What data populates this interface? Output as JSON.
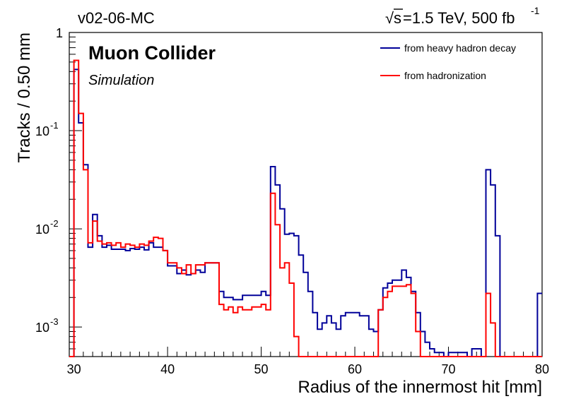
{
  "header": {
    "left_label": "v02-06-MC",
    "energy_sqrt": "s",
    "energy_prefix": "=1.5 TeV, 500 fb",
    "energy_superscript": "-1"
  },
  "chart_data": {
    "type": "line",
    "xlabel": "Radius of the innermost hit [mm]",
    "ylabel": "Tracks / 0.50 mm",
    "xlim": [
      29.5,
      80
    ],
    "ylim": [
      0.0005,
      1
    ],
    "y_scale": "log",
    "grid": false,
    "legend_position": "top-right",
    "annotations": [
      {
        "text": "Muon Collider",
        "style": "bold"
      },
      {
        "text": "Simulation",
        "style": "italic"
      }
    ],
    "x_ticks": [
      {
        "value": 30,
        "label": "30"
      },
      {
        "value": 40,
        "label": "40"
      },
      {
        "value": 50,
        "label": "50"
      },
      {
        "value": 60,
        "label": "60"
      },
      {
        "value": 70,
        "label": "70"
      },
      {
        "value": 80,
        "label": "80"
      }
    ],
    "y_ticks": [
      {
        "value": 1,
        "base": "1",
        "exp": ""
      },
      {
        "value": 0.1,
        "base": "10",
        "exp": "-1"
      },
      {
        "value": 0.01,
        "base": "10",
        "exp": "-2"
      },
      {
        "value": 0.001,
        "base": "10",
        "exp": "-3"
      }
    ],
    "bin_edges": [
      29.5,
      80
    ],
    "series": [
      {
        "name": "from heavy hadron decay",
        "color": "#000099",
        "steps": [
          [
            29.5,
            0.0005
          ],
          [
            30.0,
            0.0005
          ],
          [
            30.0,
            0.42
          ],
          [
            30.5,
            0.12
          ],
          [
            31.0,
            0.045
          ],
          [
            31.5,
            0.0065
          ],
          [
            32.0,
            0.014
          ],
          [
            32.5,
            0.0085
          ],
          [
            33.0,
            0.0065
          ],
          [
            33.5,
            0.0068
          ],
          [
            34.0,
            0.0062
          ],
          [
            34.5,
            0.0062
          ],
          [
            35.0,
            0.0062
          ],
          [
            35.5,
            0.006
          ],
          [
            36.0,
            0.0063
          ],
          [
            36.5,
            0.0062
          ],
          [
            37.0,
            0.0065
          ],
          [
            37.5,
            0.0061
          ],
          [
            38.0,
            0.0072
          ],
          [
            38.5,
            0.0065
          ],
          [
            39.0,
            0.0065
          ],
          [
            39.5,
            0.006
          ],
          [
            40.0,
            0.0042
          ],
          [
            40.5,
            0.0042
          ],
          [
            41.0,
            0.0035
          ],
          [
            41.5,
            0.0038
          ],
          [
            42.0,
            0.0034
          ],
          [
            42.5,
            0.0035
          ],
          [
            43.0,
            0.0038
          ],
          [
            43.5,
            0.0036
          ],
          [
            44.0,
            0.0045
          ],
          [
            44.5,
            0.0045
          ],
          [
            45.0,
            0.0045
          ],
          [
            45.5,
            0.0023
          ],
          [
            46.0,
            0.002
          ],
          [
            46.5,
            0.002
          ],
          [
            47.0,
            0.0019
          ],
          [
            47.5,
            0.0019
          ],
          [
            48.0,
            0.0021
          ],
          [
            48.5,
            0.0021
          ],
          [
            49.0,
            0.0021
          ],
          [
            49.5,
            0.0021
          ],
          [
            50.0,
            0.0023
          ],
          [
            50.5,
            0.0021
          ],
          [
            51.0,
            0.043
          ],
          [
            51.5,
            0.028
          ],
          [
            52.0,
            0.016
          ],
          [
            52.5,
            0.0088
          ],
          [
            53.0,
            0.009
          ],
          [
            53.5,
            0.0085
          ],
          [
            54.0,
            0.0054
          ],
          [
            54.5,
            0.0036
          ],
          [
            55.0,
            0.0023
          ],
          [
            55.5,
            0.0014
          ],
          [
            56.0,
            0.00095
          ],
          [
            56.5,
            0.0011
          ],
          [
            57.0,
            0.0013
          ],
          [
            57.5,
            0.0011
          ],
          [
            58.0,
            0.00095
          ],
          [
            58.5,
            0.0013
          ],
          [
            59.0,
            0.0014
          ],
          [
            59.5,
            0.0014
          ],
          [
            60.0,
            0.0014
          ],
          [
            60.5,
            0.0013
          ],
          [
            61.0,
            0.0013
          ],
          [
            61.5,
            0.00095
          ],
          [
            62.0,
            0.0009
          ],
          [
            62.5,
            0.0015
          ],
          [
            63.0,
            0.0025
          ],
          [
            63.5,
            0.0028
          ],
          [
            64.0,
            0.003
          ],
          [
            64.5,
            0.003
          ],
          [
            65.0,
            0.0038
          ],
          [
            65.5,
            0.0032
          ],
          [
            66.0,
            0.0023
          ],
          [
            66.5,
            0.0014
          ],
          [
            67.0,
            0.0009
          ],
          [
            67.5,
            0.0007
          ],
          [
            68.0,
            0.0006
          ],
          [
            68.5,
            0.00055
          ],
          [
            69.0,
            0.00055
          ],
          [
            69.5,
            0.0005
          ],
          [
            70.0,
            0.00055
          ],
          [
            70.5,
            0.00055
          ],
          [
            71.0,
            0.00055
          ],
          [
            71.5,
            0.00055
          ],
          [
            72.0,
            0.0005
          ],
          [
            72.5,
            0.0006
          ],
          [
            73.0,
            0.0006
          ],
          [
            73.5,
            0.0005
          ],
          [
            74.0,
            0.04
          ],
          [
            74.5,
            0.028
          ],
          [
            75.0,
            0.0085
          ],
          [
            75.5,
            0.0005
          ],
          [
            79.5,
            0.0005
          ],
          [
            79.5,
            0.0022
          ],
          [
            80.0,
            0.0022
          ]
        ]
      },
      {
        "name": "from hadronization",
        "color": "#ff0000",
        "steps": [
          [
            29.5,
            0.0005
          ],
          [
            30.0,
            0.0005
          ],
          [
            30.0,
            0.52
          ],
          [
            30.5,
            0.15
          ],
          [
            31.0,
            0.04
          ],
          [
            31.5,
            0.0072
          ],
          [
            32.0,
            0.012
          ],
          [
            32.5,
            0.0075
          ],
          [
            33.0,
            0.007
          ],
          [
            33.5,
            0.0072
          ],
          [
            34.0,
            0.0068
          ],
          [
            34.5,
            0.0072
          ],
          [
            35.0,
            0.0065
          ],
          [
            35.5,
            0.007
          ],
          [
            36.0,
            0.0068
          ],
          [
            36.5,
            0.0065
          ],
          [
            37.0,
            0.007
          ],
          [
            37.5,
            0.0068
          ],
          [
            38.0,
            0.0075
          ],
          [
            38.5,
            0.0082
          ],
          [
            39.0,
            0.008
          ],
          [
            39.5,
            0.006
          ],
          [
            40.0,
            0.0045
          ],
          [
            40.5,
            0.0045
          ],
          [
            41.0,
            0.004
          ],
          [
            41.5,
            0.0035
          ],
          [
            42.0,
            0.0043
          ],
          [
            42.5,
            0.0035
          ],
          [
            43.0,
            0.0043
          ],
          [
            43.5,
            0.0043
          ],
          [
            44.0,
            0.0045
          ],
          [
            44.5,
            0.0045
          ],
          [
            45.0,
            0.0045
          ],
          [
            45.5,
            0.0017
          ],
          [
            46.0,
            0.0015
          ],
          [
            46.5,
            0.0016
          ],
          [
            47.0,
            0.0014
          ],
          [
            47.5,
            0.0016
          ],
          [
            48.0,
            0.0015
          ],
          [
            48.5,
            0.0015
          ],
          [
            49.0,
            0.0016
          ],
          [
            49.5,
            0.0016
          ],
          [
            50.0,
            0.0017
          ],
          [
            50.5,
            0.0015
          ],
          [
            51.0,
            0.023
          ],
          [
            51.5,
            0.011
          ],
          [
            52.0,
            0.004
          ],
          [
            52.5,
            0.0045
          ],
          [
            53.0,
            0.0028
          ],
          [
            53.5,
            0.0008
          ],
          [
            54.0,
            0.0005
          ],
          [
            62.0,
            0.0005
          ],
          [
            62.5,
            0.0015
          ],
          [
            63.0,
            0.002
          ],
          [
            63.5,
            0.0023
          ],
          [
            64.0,
            0.0026
          ],
          [
            65.0,
            0.0026
          ],
          [
            65.5,
            0.0027
          ],
          [
            66.0,
            0.0022
          ],
          [
            66.5,
            0.0009
          ],
          [
            67.0,
            0.0005
          ],
          [
            74.0,
            0.0005
          ],
          [
            74.0,
            0.0022
          ],
          [
            74.5,
            0.0011
          ],
          [
            75.0,
            0.0005
          ],
          [
            80.0,
            0.0005
          ]
        ]
      }
    ]
  }
}
